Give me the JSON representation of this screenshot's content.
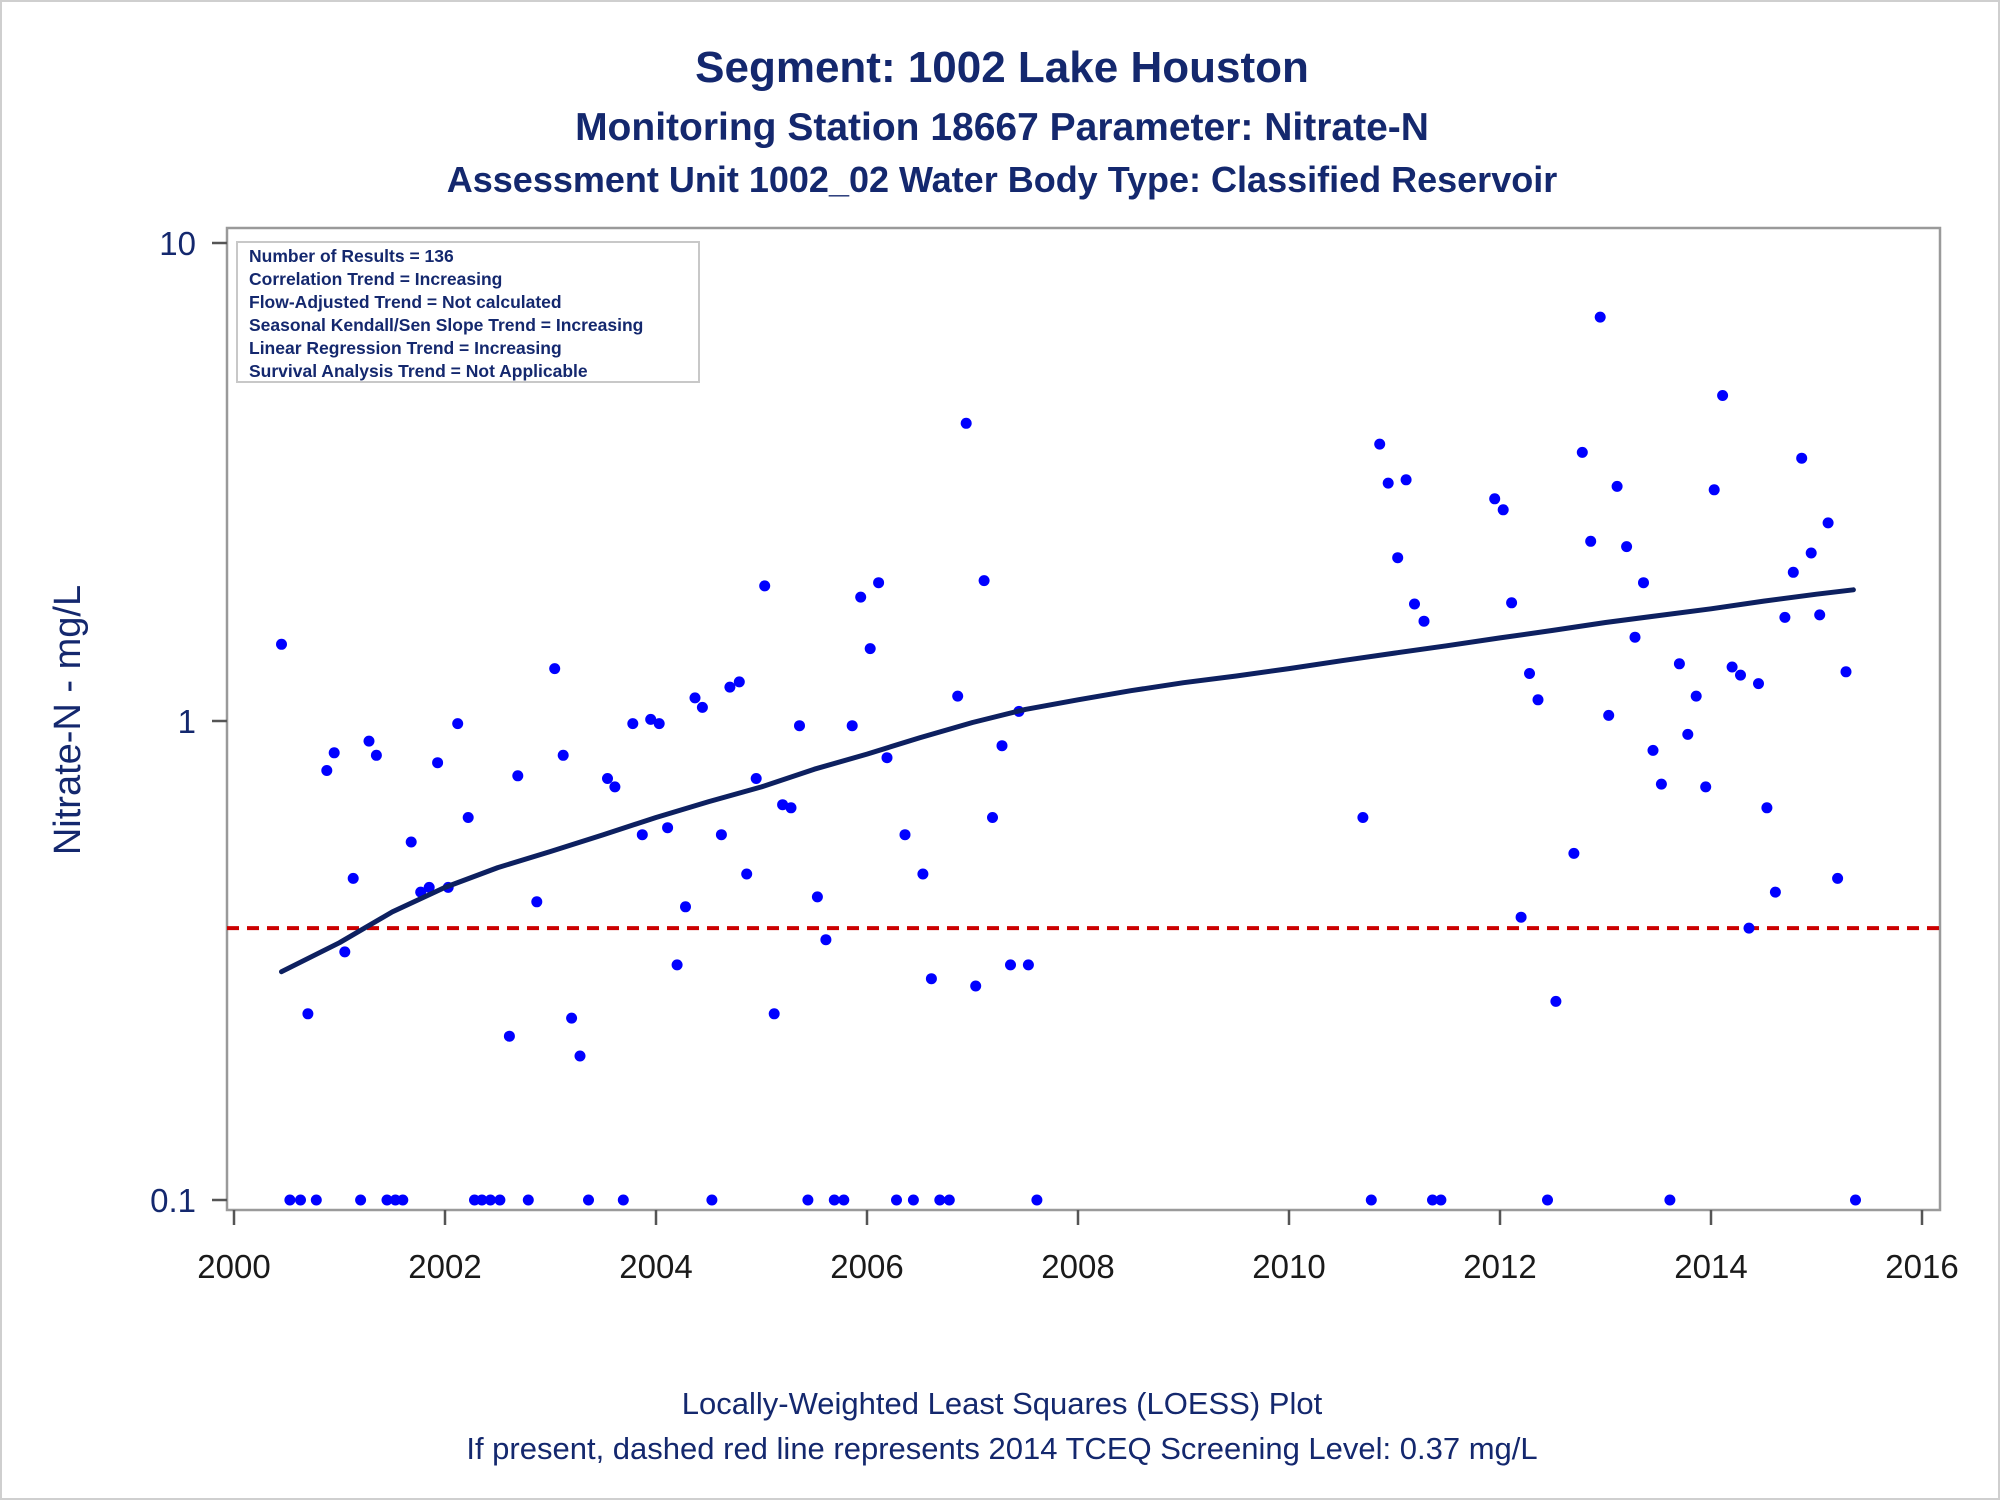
{
  "chart_data": {
    "type": "scatter",
    "title": "Segment: 1002  Lake Houston",
    "subtitle": "Monitoring Station 18667 Parameter: Nitrate-N",
    "subtitle2": "Assessment Unit 1002_02   Water Body Type: Classified Reservoir",
    "xlabel": "",
    "ylabel": "Nitrate-N - mg/L",
    "x_ticks": [
      "2000",
      "2002",
      "2004",
      "2006",
      "2008",
      "2010",
      "2012",
      "2014",
      "2016"
    ],
    "y_ticks": [
      "0.1",
      "1",
      "10"
    ],
    "xlim": [
      2000,
      2016
    ],
    "ylim": [
      0.1,
      10
    ],
    "y_scale": "log",
    "grid": false,
    "stats_box": [
      "Number of Results = 136",
      "Correlation Trend = Increasing",
      "Flow-Adjusted Trend = Not calculated",
      "Seasonal Kendall/Sen Slope Trend = Increasing",
      "Linear Regression Trend = Increasing",
      "Survival Analysis Trend = Not Applicable"
    ],
    "stats_box_position": "top-left",
    "footnote1": "Locally-Weighted Least Squares (LOESS) Plot",
    "footnote2": "If present, dashed red line represents 2014 TCEQ Screening Level: 0.37 mg/L",
    "screening_level": 0.37,
    "colors": {
      "points": "#0000ff",
      "loess": "#0d2060",
      "screening": "#cc0000",
      "text": "#14286e"
    },
    "series": [
      {
        "type": "scatter",
        "points": [
          [
            2000.45,
            1.45
          ],
          [
            2000.53,
            0.1
          ],
          [
            2000.63,
            0.1
          ],
          [
            2000.7,
            0.245
          ],
          [
            2000.78,
            0.1
          ],
          [
            2000.88,
            0.79
          ],
          [
            2000.95,
            0.86
          ],
          [
            2001.05,
            0.33
          ],
          [
            2001.13,
            0.47
          ],
          [
            2001.2,
            0.1
          ],
          [
            2001.28,
            0.91
          ],
          [
            2001.35,
            0.85
          ],
          [
            2001.45,
            0.1
          ],
          [
            2001.53,
            0.1
          ],
          [
            2001.6,
            0.1
          ],
          [
            2001.68,
            0.56
          ],
          [
            2001.77,
            0.44
          ],
          [
            2001.85,
            0.45
          ],
          [
            2001.93,
            0.82
          ],
          [
            2002.03,
            0.45
          ],
          [
            2002.12,
            0.99
          ],
          [
            2002.22,
            0.63
          ],
          [
            2002.28,
            0.1
          ],
          [
            2002.35,
            0.1
          ],
          [
            2002.43,
            0.1
          ],
          [
            2002.52,
            0.1
          ],
          [
            2002.61,
            0.22
          ],
          [
            2002.69,
            0.77
          ],
          [
            2002.79,
            0.1
          ],
          [
            2002.87,
            0.42
          ],
          [
            2003.04,
            1.29
          ],
          [
            2003.12,
            0.85
          ],
          [
            2003.2,
            0.24
          ],
          [
            2003.28,
            0.2
          ],
          [
            2003.36,
            0.1
          ],
          [
            2003.54,
            0.76
          ],
          [
            2003.61,
            0.73
          ],
          [
            2003.69,
            0.1
          ],
          [
            2003.78,
            0.99
          ],
          [
            2003.87,
            0.58
          ],
          [
            2003.95,
            1.01
          ],
          [
            2004.03,
            0.99
          ],
          [
            2004.11,
            0.6
          ],
          [
            2004.2,
            0.31
          ],
          [
            2004.28,
            0.41
          ],
          [
            2004.37,
            1.12
          ],
          [
            2004.44,
            1.07
          ],
          [
            2004.53,
            0.1
          ],
          [
            2004.62,
            0.58
          ],
          [
            2004.7,
            1.18
          ],
          [
            2004.79,
            1.21
          ],
          [
            2004.86,
            0.48
          ],
          [
            2004.95,
            0.76
          ],
          [
            2005.03,
            1.92
          ],
          [
            2005.12,
            0.245
          ],
          [
            2005.2,
            0.67
          ],
          [
            2005.28,
            0.66
          ],
          [
            2005.36,
            0.98
          ],
          [
            2005.44,
            0.1
          ],
          [
            2005.53,
            0.43
          ],
          [
            2005.61,
            0.35
          ],
          [
            2005.69,
            0.1
          ],
          [
            2005.78,
            0.1
          ],
          [
            2005.86,
            0.98
          ],
          [
            2005.94,
            1.82
          ],
          [
            2006.03,
            1.42
          ],
          [
            2006.11,
            1.95
          ],
          [
            2006.19,
            0.84
          ],
          [
            2006.28,
            0.1
          ],
          [
            2006.36,
            0.58
          ],
          [
            2006.44,
            0.1
          ],
          [
            2006.53,
            0.48
          ],
          [
            2006.61,
            0.29
          ],
          [
            2006.69,
            0.1
          ],
          [
            2006.78,
            0.1
          ],
          [
            2006.86,
            1.13
          ],
          [
            2006.94,
            4.2
          ],
          [
            2007.03,
            0.28
          ],
          [
            2007.11,
            1.97
          ],
          [
            2007.19,
            0.63
          ],
          [
            2007.28,
            0.89
          ],
          [
            2007.36,
            0.31
          ],
          [
            2007.44,
            1.05
          ],
          [
            2007.53,
            0.31
          ],
          [
            2007.61,
            0.1
          ],
          [
            2010.7,
            0.63
          ],
          [
            2010.78,
            0.1
          ],
          [
            2010.86,
            3.8
          ],
          [
            2010.94,
            3.15
          ],
          [
            2011.03,
            2.2
          ],
          [
            2011.11,
            3.2
          ],
          [
            2011.19,
            1.76
          ],
          [
            2011.28,
            1.62
          ],
          [
            2011.36,
            0.1
          ],
          [
            2011.44,
            0.1
          ],
          [
            2011.95,
            2.92
          ],
          [
            2012.03,
            2.77
          ],
          [
            2012.11,
            1.77
          ],
          [
            2012.2,
            0.39
          ],
          [
            2012.28,
            1.26
          ],
          [
            2012.36,
            1.11
          ],
          [
            2012.45,
            0.1
          ],
          [
            2012.53,
            0.26
          ],
          [
            2012.7,
            0.53
          ],
          [
            2012.78,
            3.65
          ],
          [
            2012.86,
            2.38
          ],
          [
            2012.95,
            7.0
          ],
          [
            2013.03,
            1.03
          ],
          [
            2013.11,
            3.1
          ],
          [
            2013.2,
            2.32
          ],
          [
            2013.28,
            1.5
          ],
          [
            2013.36,
            1.95
          ],
          [
            2013.45,
            0.87
          ],
          [
            2013.53,
            0.74
          ],
          [
            2013.61,
            0.1
          ],
          [
            2013.7,
            1.32
          ],
          [
            2013.78,
            0.94
          ],
          [
            2013.86,
            1.13
          ],
          [
            2013.95,
            0.73
          ],
          [
            2014.03,
            3.05
          ],
          [
            2014.11,
            4.8
          ],
          [
            2014.2,
            1.3
          ],
          [
            2014.28,
            1.25
          ],
          [
            2014.36,
            0.37
          ],
          [
            2014.45,
            1.2
          ],
          [
            2014.53,
            0.66
          ],
          [
            2014.61,
            0.44
          ],
          [
            2014.7,
            1.65
          ],
          [
            2014.78,
            2.05
          ],
          [
            2014.86,
            3.55
          ],
          [
            2014.95,
            2.25
          ],
          [
            2015.03,
            1.67
          ],
          [
            2015.11,
            2.6
          ],
          [
            2015.2,
            0.47
          ],
          [
            2015.28,
            1.27
          ],
          [
            2015.37,
            0.1
          ]
        ]
      },
      {
        "type": "line",
        "name": "LOESS",
        "points": [
          [
            2000.45,
            0.3
          ],
          [
            2001.0,
            0.345
          ],
          [
            2001.5,
            0.4
          ],
          [
            2002.0,
            0.45
          ],
          [
            2002.5,
            0.495
          ],
          [
            2003.0,
            0.535
          ],
          [
            2003.5,
            0.58
          ],
          [
            2004.0,
            0.63
          ],
          [
            2004.5,
            0.68
          ],
          [
            2005.0,
            0.73
          ],
          [
            2005.5,
            0.795
          ],
          [
            2006.0,
            0.855
          ],
          [
            2006.5,
            0.925
          ],
          [
            2007.0,
            0.995
          ],
          [
            2007.5,
            1.06
          ],
          [
            2008.0,
            1.11
          ],
          [
            2008.5,
            1.16
          ],
          [
            2009.0,
            1.205
          ],
          [
            2009.5,
            1.245
          ],
          [
            2010.0,
            1.29
          ],
          [
            2010.5,
            1.34
          ],
          [
            2011.0,
            1.39
          ],
          [
            2011.5,
            1.44
          ],
          [
            2012.0,
            1.495
          ],
          [
            2012.5,
            1.55
          ],
          [
            2013.0,
            1.61
          ],
          [
            2013.5,
            1.665
          ],
          [
            2014.0,
            1.72
          ],
          [
            2014.5,
            1.785
          ],
          [
            2015.0,
            1.845
          ],
          [
            2015.35,
            1.885
          ]
        ]
      }
    ]
  }
}
